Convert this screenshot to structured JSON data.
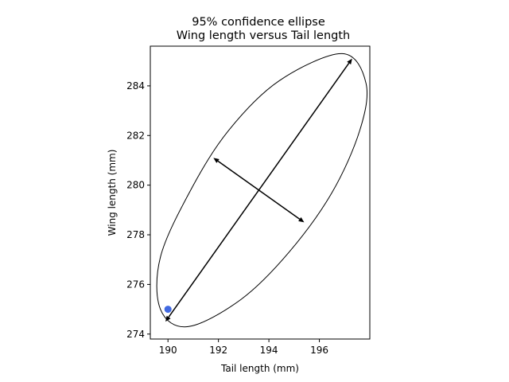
{
  "chart_data": {
    "type": "scatter",
    "title": "95% confidence ellipse",
    "subtitle": "Wing length versus Tail length",
    "xlabel": "Tail length (mm)",
    "ylabel": "Wing length (mm)",
    "xlim": [
      189.3,
      198.0
    ],
    "ylim": [
      273.8,
      285.6
    ],
    "x_ticks": [
      190,
      192,
      194,
      196
    ],
    "y_ticks": [
      274,
      276,
      278,
      280,
      282,
      284
    ],
    "grid": false,
    "points": [
      {
        "x": 190.0,
        "y": 275.0,
        "color": "#4169e1"
      }
    ],
    "ellipse": {
      "center": [
        193.6,
        279.8
      ],
      "outline_color": "#000000",
      "boundary": [
        [
          190.8,
          274.3
        ],
        [
          192.9,
          275.4
        ],
        [
          194.8,
          277.3
        ],
        [
          196.5,
          279.7
        ],
        [
          197.6,
          282.2
        ],
        [
          197.85,
          284.1
        ],
        [
          196.9,
          285.3
        ],
        [
          194.4,
          284.2
        ],
        [
          192.4,
          282.2
        ],
        [
          190.9,
          279.8
        ],
        [
          189.7,
          277.1
        ],
        [
          189.7,
          275.0
        ]
      ]
    },
    "arrows": [
      {
        "from": [
          193.6,
          279.8
        ],
        "to": [
          197.3,
          285.1
        ]
      },
      {
        "from": [
          193.6,
          279.8
        ],
        "to": [
          189.9,
          274.5
        ]
      },
      {
        "from": [
          193.6,
          279.8
        ],
        "to": [
          191.8,
          281.1
        ]
      },
      {
        "from": [
          193.6,
          279.8
        ],
        "to": [
          195.4,
          278.5
        ]
      }
    ]
  }
}
